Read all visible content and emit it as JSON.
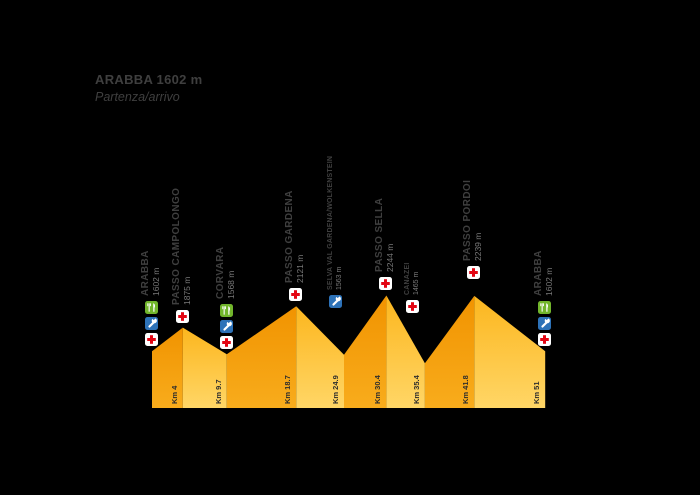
{
  "title": {
    "line1": "ARABBA 1602 m",
    "line2": "Partenza/arrivo"
  },
  "colors": {
    "background": "#000000",
    "label_text": "#3f3f3f",
    "elevation_text": "#787878",
    "km_text": "#2d2d2d",
    "ascent_top": "#f19300",
    "ascent_bottom": "#f8ac1c",
    "descent_top": "#fcb61e",
    "descent_bottom": "#ffd666",
    "medic_red": "#e30613",
    "mechanic_blue": "#2d72b8",
    "refreshment_green": "#72b52c"
  },
  "icon_glyphs": {
    "medic": "red-cross-icon",
    "mechanic": "wrench-icon",
    "refreshment": "fork-knife-icon"
  },
  "chart_data": {
    "type": "area",
    "title": "ARABBA 1602 m — Partenza/arrivo",
    "xlabel": "Km",
    "ylabel": "m",
    "x_range_km": [
      0,
      51
    ],
    "elevation_range_m": [
      1465,
      2244
    ],
    "grid": false,
    "legend": false,
    "stations": [
      {
        "name": "ARABBA",
        "elevation_label": "1602 m",
        "elevation_m": 1602,
        "km": 0,
        "km_label": "",
        "icons": [
          "refreshment",
          "mechanic",
          "medic"
        ],
        "label_style": "large"
      },
      {
        "name": "PASSO CAMPOLONGO",
        "elevation_label": "1875 m",
        "elevation_m": 1875,
        "km": 4,
        "km_label": "Km 4",
        "icons": [
          "medic"
        ],
        "label_style": "large"
      },
      {
        "name": "CORVARA",
        "elevation_label": "1568 m",
        "elevation_m": 1568,
        "km": 9.7,
        "km_label": "Km 9.7",
        "icons": [
          "refreshment",
          "mechanic",
          "medic"
        ],
        "label_style": "large"
      },
      {
        "name": "PASSO GARDENA",
        "elevation_label": "2121 m",
        "elevation_m": 2121,
        "km": 18.7,
        "km_label": "Km 18.7",
        "icons": [
          "medic"
        ],
        "label_style": "large"
      },
      {
        "name": "SELVA VAL GARDENA/WOLKENSTEIN",
        "elevation_label": "1563 m",
        "elevation_m": 1563,
        "km": 24.9,
        "km_label": "Km 24.9",
        "icons": [
          "mechanic"
        ],
        "label_style": "small"
      },
      {
        "name": "PASSO SELLA",
        "elevation_label": "2244 m",
        "elevation_m": 2244,
        "km": 30.4,
        "km_label": "Km 30.4",
        "icons": [
          "medic"
        ],
        "label_style": "large"
      },
      {
        "name": "CANAZEI",
        "elevation_label": "1465 m",
        "elevation_m": 1465,
        "km": 35.4,
        "km_label": "Km 35.4",
        "icons": [
          "medic"
        ],
        "label_style": "small"
      },
      {
        "name": "PASSO PORDOI",
        "elevation_label": "2239 m",
        "elevation_m": 2239,
        "km": 41.8,
        "km_label": "Km 41.8",
        "icons": [
          "medic"
        ],
        "label_style": "large"
      },
      {
        "name": "ARABBA",
        "elevation_label": "1602 m",
        "elevation_m": 1602,
        "km": 51,
        "km_label": "Km 51",
        "icons": [
          "refreshment",
          "mechanic",
          "medic"
        ],
        "label_style": "large"
      }
    ]
  }
}
